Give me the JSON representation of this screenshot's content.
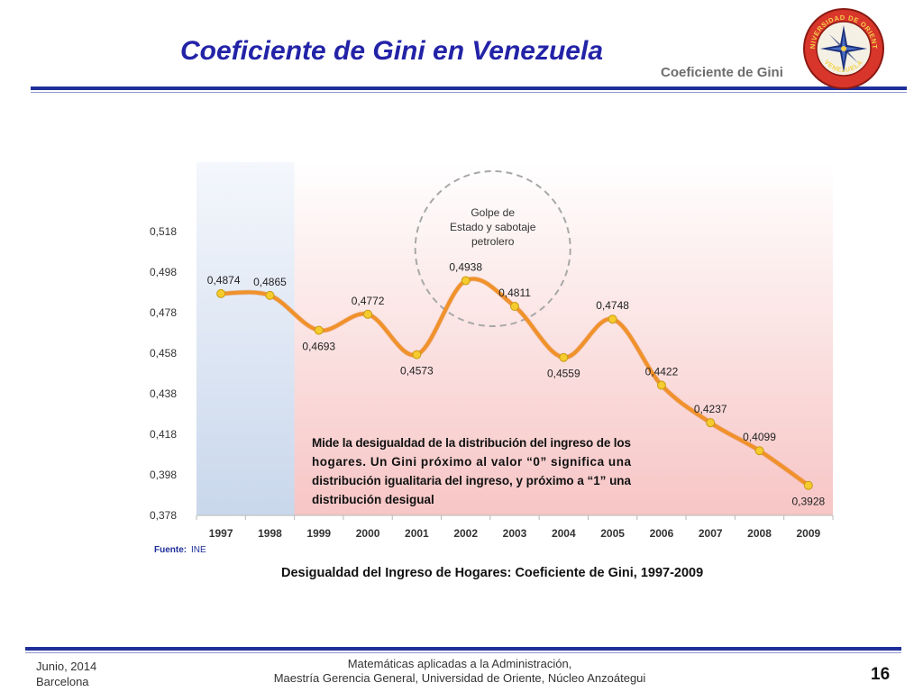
{
  "header": {
    "title": "Coeficiente de Gini en Venezuela",
    "subtitle": "Coeficiente de Gini",
    "seal_top_text": "UNIVERSIDAD DE ORIENTE",
    "seal_bottom_text": "VENEZUELA"
  },
  "footer": {
    "date": "Junio, 2014",
    "city": "Barcelona",
    "line1": "Matemáticas aplicadas a la Administración,",
    "line2": "Maestría Gerencia General, Universidad de Oriente, Núcleo Anzoátegui",
    "page": "16"
  },
  "chart_data": {
    "type": "line",
    "title": "Desigualdad del Ingreso de Hogares: Coeficiente de Gini, 1997-2009",
    "xlabel": "",
    "ylabel": "",
    "categories": [
      "1997",
      "1998",
      "1999",
      "2000",
      "2001",
      "2002",
      "2003",
      "2004",
      "2005",
      "2006",
      "2007",
      "2008",
      "2009"
    ],
    "values": [
      0.4874,
      0.4865,
      0.4693,
      0.4772,
      0.4573,
      0.4938,
      0.4811,
      0.4559,
      0.4748,
      0.4422,
      0.4237,
      0.4099,
      0.3928
    ],
    "data_labels": [
      "0,4874",
      "0,4865",
      "0,4693",
      "0,4772",
      "0,4573",
      "0,4938",
      "0,4811",
      "0,4559",
      "0,4748",
      "0,4422",
      "0,4237",
      "0,4099",
      "0,3928"
    ],
    "ylim": [
      0.378,
      0.518
    ],
    "yticks": [
      0.378,
      0.398,
      0.418,
      0.438,
      0.458,
      0.478,
      0.498,
      0.518
    ],
    "ytick_labels": [
      "0,378",
      "0,398",
      "0,418",
      "0,438",
      "0,458",
      "0,478",
      "0,498",
      "0,518"
    ],
    "line_color": "#f0912a",
    "marker_color": "#f5cb2e",
    "highlight_region": {
      "from": "1997",
      "to": "1998",
      "color": "#c9d7ec"
    },
    "background_gradient": [
      "#ffffff",
      "#f7c5c5"
    ],
    "annotation_circle": {
      "text": [
        "Golpe de",
        "Estado y sabotaje",
        "petrolero"
      ],
      "center_category": "2002"
    },
    "note": {
      "lines": [
        "Mide la desigualdad de la distribución del ingreso de los",
        "hogares. Un Gini próximo al valor “0” significa una",
        "distribución igualitaria del ingreso, y próximo a “1” una",
        "distribución desigual"
      ]
    },
    "source_label": "Fuente:",
    "source_value": "INE",
    "grid": false
  }
}
